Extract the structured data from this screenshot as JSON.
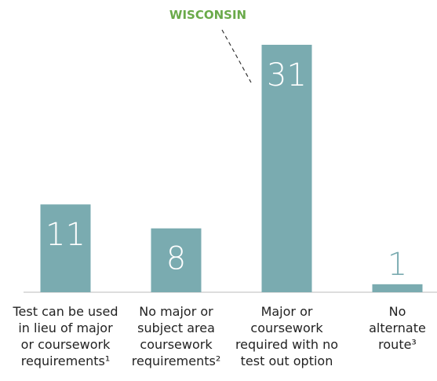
{
  "chart_data": {
    "type": "bar",
    "categories": [
      "Test can be used\nin lieu of major\nor coursework\nrequirements¹",
      "No major or\nsubject area\ncoursework\nrequirements²",
      "Major or\ncoursework\nrequired with no\ntest out option",
      "No\nalternate\nroute³"
    ],
    "values": [
      11,
      8,
      31,
      1
    ],
    "color": "#7aabb0",
    "annotation": "WISCONSIN",
    "annotation_color": "#6aaa4a"
  }
}
